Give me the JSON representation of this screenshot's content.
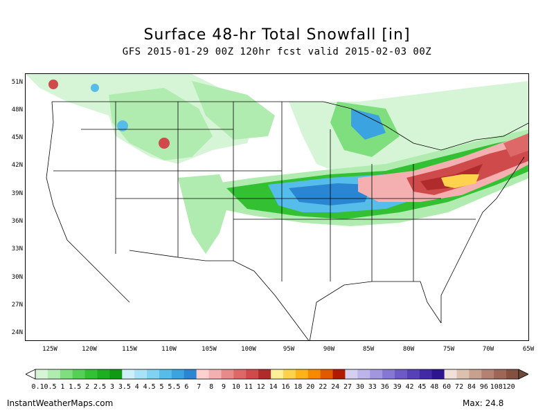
{
  "title": "Surface 48-hr Total Snowfall [in]",
  "subtitle": "GFS 2015-01-29 00Z 120hr fcst valid 2015-02-03 00Z",
  "lat_labels": [
    "51N",
    "48N",
    "45N",
    "42N",
    "39N",
    "36N",
    "33N",
    "30N",
    "27N",
    "24N"
  ],
  "lon_labels": [
    "125W",
    "120W",
    "115W",
    "110W",
    "105W",
    "100W",
    "95W",
    "90W",
    "85W",
    "80W",
    "75W",
    "70W",
    "65W"
  ],
  "colorbar": {
    "labels": [
      "0.1",
      "0.5",
      "1",
      "1.5",
      "2",
      "2.5",
      "3",
      "3.5",
      "4",
      "4.5",
      "5",
      "5.5",
      "6",
      "7",
      "8",
      "9",
      "10",
      "11",
      "12",
      "14",
      "16",
      "18",
      "20",
      "22",
      "24",
      "27",
      "30",
      "33",
      "36",
      "39",
      "42",
      "45",
      "48",
      "60",
      "72",
      "84",
      "96",
      "108",
      "120"
    ],
    "colors": [
      "#d6f5d6",
      "#b0ecb0",
      "#7fdf7f",
      "#54d054",
      "#33c033",
      "#1fae1f",
      "#119a11",
      "#cdeff8",
      "#a6e4f5",
      "#7fd3f0",
      "#56bdea",
      "#3aa3e0",
      "#2a86d2",
      "#ffd0d0",
      "#f4b0b0",
      "#e88a8a",
      "#dc6868",
      "#cf4b4b",
      "#b02b2b",
      "#ffef99",
      "#ffd24d",
      "#ffb21a",
      "#f58a00",
      "#e05a00",
      "#b01a00",
      "#d6d0f0",
      "#bcb4ea",
      "#a196e0",
      "#8677d4",
      "#6d5ac6",
      "#5641b6",
      "#412aa4",
      "#2d1590",
      "#f0e0d8",
      "#dcc0b0",
      "#c8a090",
      "#b48272",
      "#9e6658",
      "#84503f"
    ]
  },
  "footer": {
    "site": "InstantWeatherMaps.com",
    "max_label": "Max:",
    "max_value": "24.8"
  }
}
